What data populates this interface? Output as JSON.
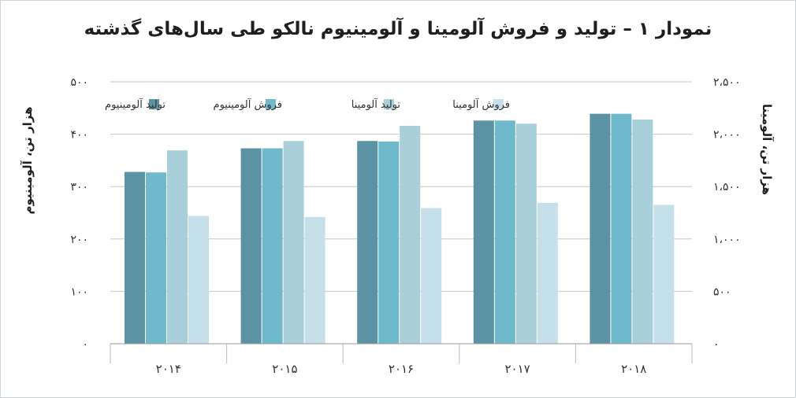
{
  "title": "نمودار ۱ – تولید و فروش آلومینا و آلومینیوم نالکو طی سال‌های گذشته",
  "chart_data": {
    "type": "bar",
    "categories": [
      "۲۰۱۴",
      "۲۰۱۵",
      "۲۰۱۶",
      "۲۰۱۷",
      "۲۰۱۸"
    ],
    "series": [
      {
        "name": "تولید آلومینیوم",
        "axis": "left",
        "color": "#5b93a4",
        "values": [
          328,
          373,
          387,
          426,
          439
        ]
      },
      {
        "name": "فروش آلومینیوم",
        "axis": "left",
        "color": "#6fb9cc",
        "values": [
          327,
          373,
          386,
          426,
          439
        ]
      },
      {
        "name": "تولید آلومینا",
        "axis": "right",
        "color": "#a9cfdb",
        "values": [
          1845,
          1935,
          2080,
          2100,
          2140
        ]
      },
      {
        "name": "فروش آلومینا",
        "axis": "right",
        "color": "#c5e0e8",
        "values": [
          1220,
          1210,
          1295,
          1345,
          1325
        ]
      }
    ],
    "ylabel_left": "هزار تن، آلومینیوم",
    "ylabel_right": "هزار تن، آلومینا",
    "ylim_left": [
      0,
      500
    ],
    "ylim_right": [
      0,
      2500
    ],
    "yticks_left": [
      "۰",
      "۱۰۰",
      "۲۰۰",
      "۳۰۰",
      "۴۰۰",
      "۵۰۰"
    ],
    "yticks_right": [
      "۰",
      "۵۰۰",
      "۱،۰۰۰",
      "۱،۵۰۰",
      "۲،۰۰۰",
      "۲،۵۰۰"
    ],
    "grid": true,
    "legend_position": "top"
  }
}
